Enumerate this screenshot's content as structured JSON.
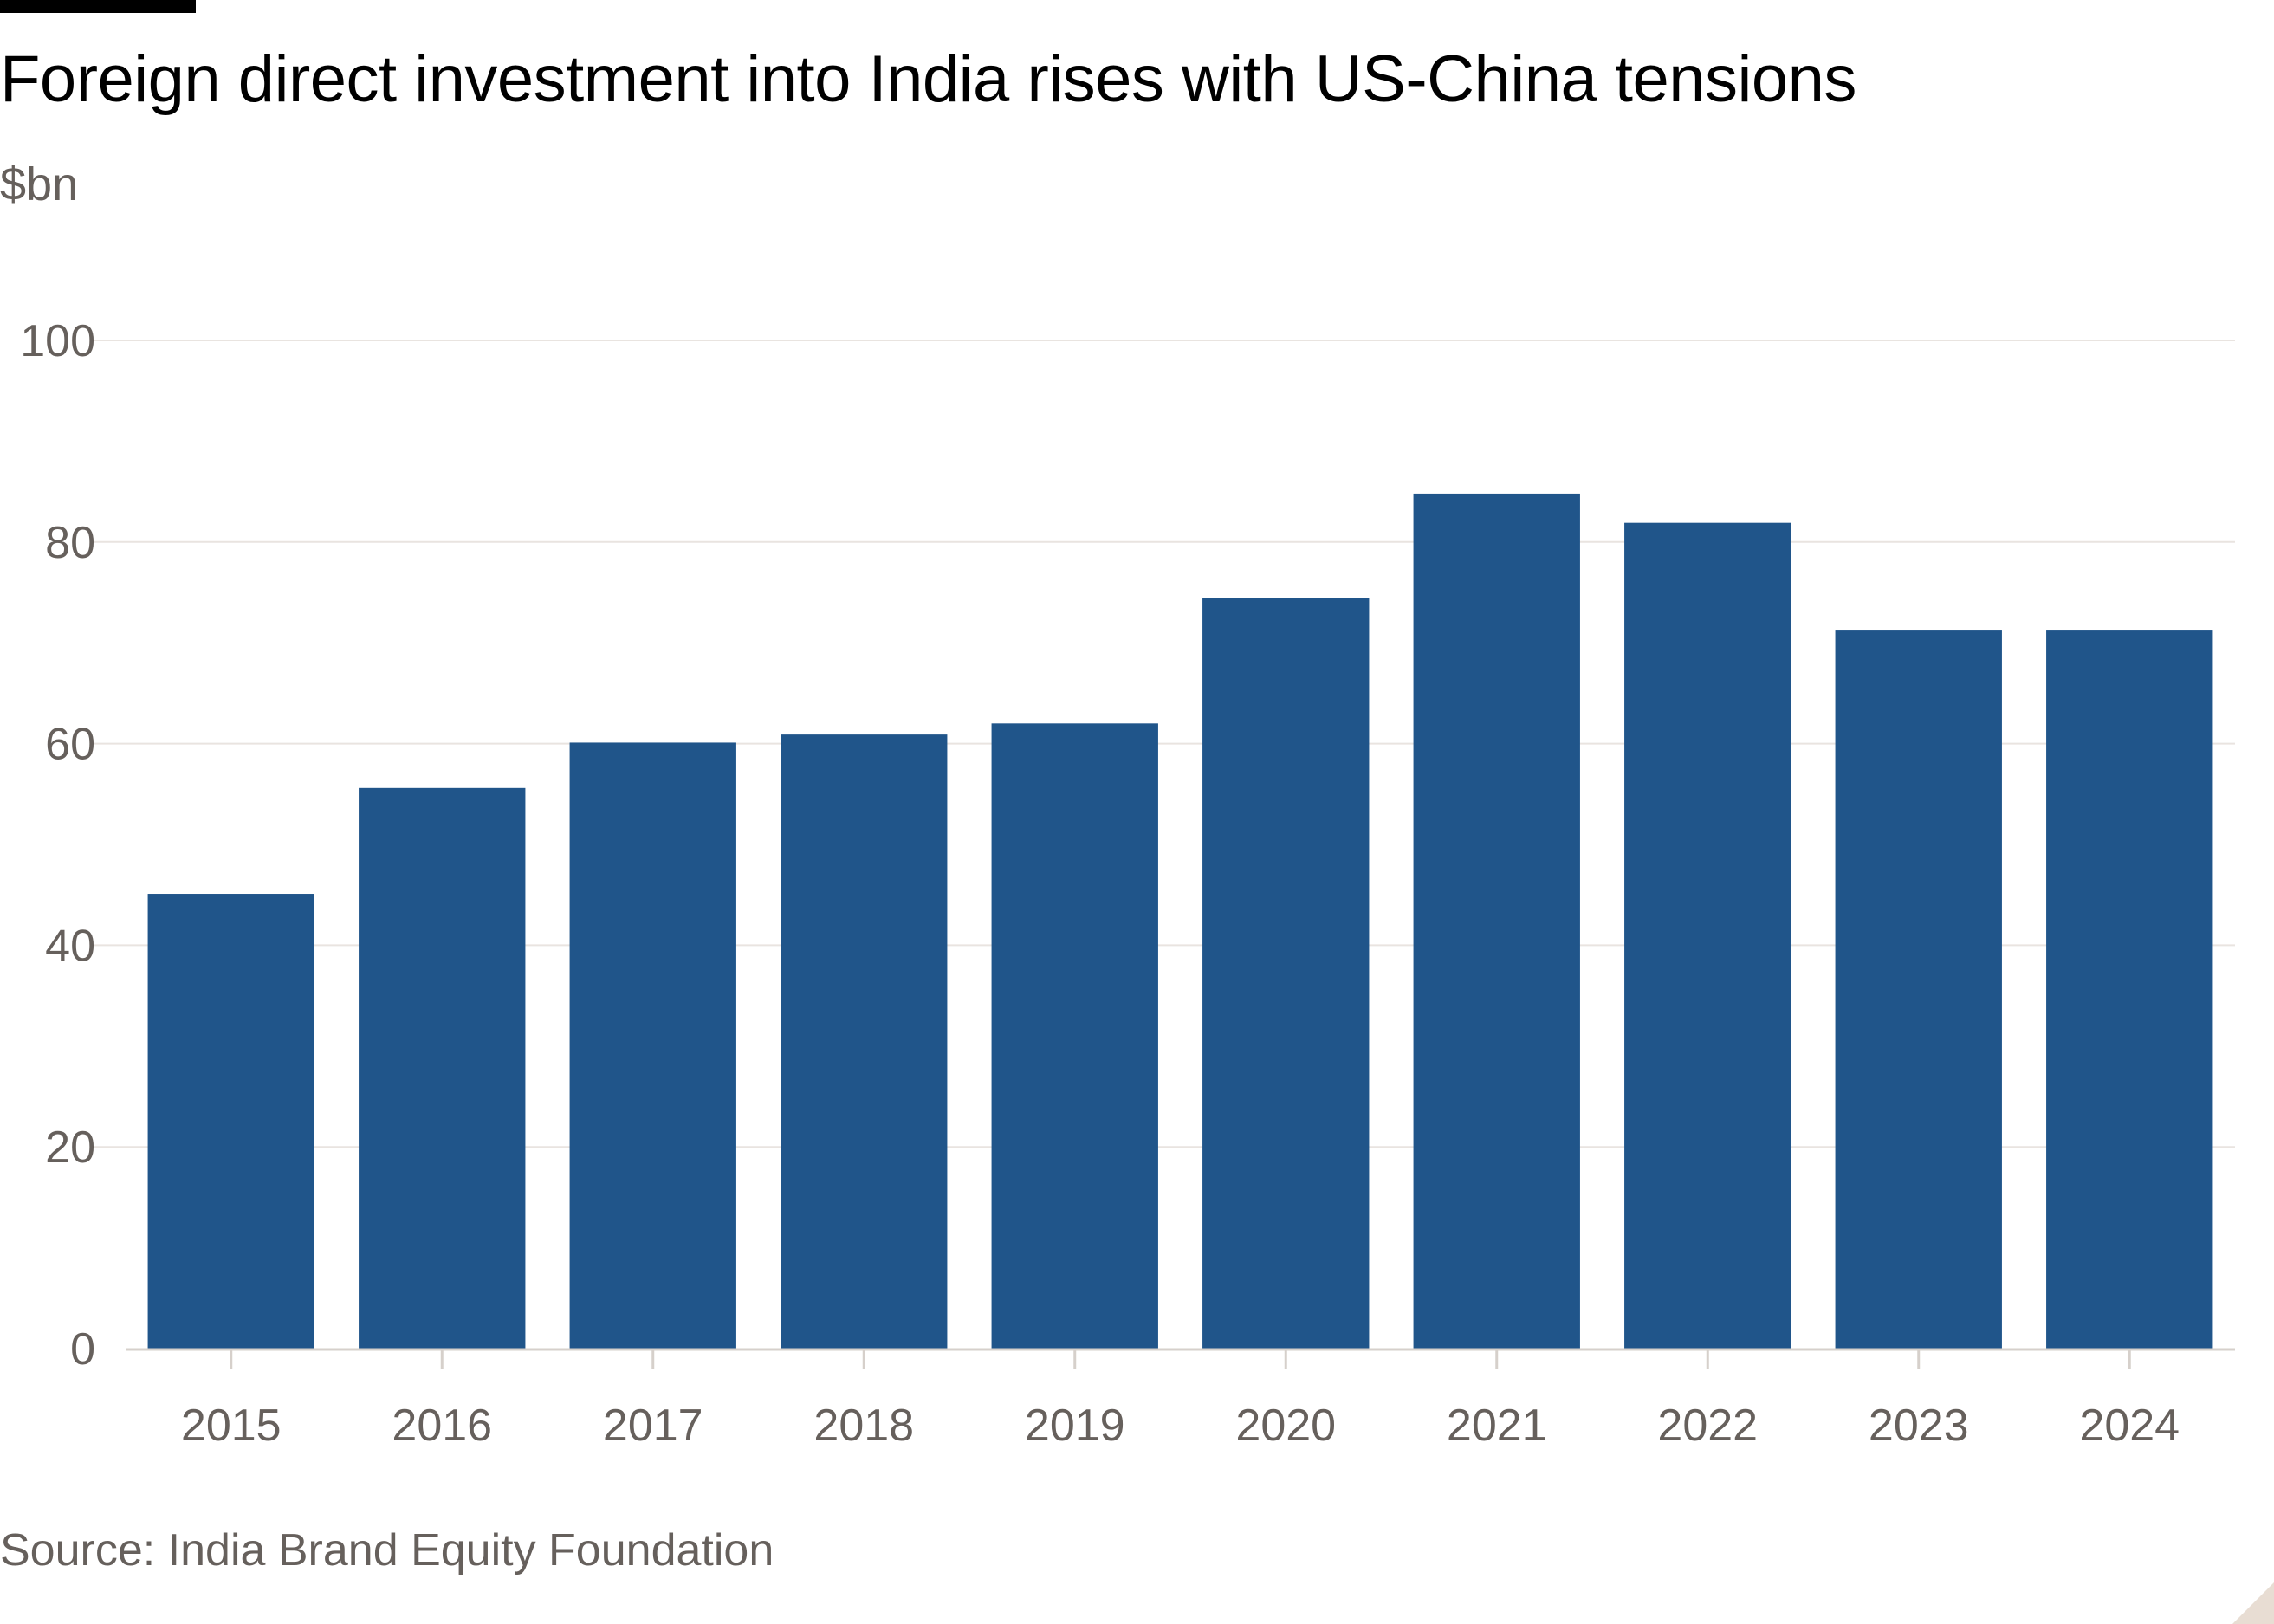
{
  "header": {
    "title": "Foreign direct investment into India rises with US-China tensions",
    "unit": "$bn"
  },
  "footer": {
    "source": "Source: India Brand Equity Foundation"
  },
  "colors": {
    "bar": "#20558a",
    "grid": "#e9e4e0",
    "axis": "#d6d0cb",
    "tick_text": "#66605c"
  },
  "chart_data": {
    "type": "bar",
    "title": "Foreign direct investment into India rises with US-China tensions",
    "ylabel": "$bn",
    "xlabel": "",
    "categories": [
      "2015",
      "2016",
      "2017",
      "2018",
      "2019",
      "2020",
      "2021",
      "2022",
      "2023",
      "2024"
    ],
    "values": [
      45.1,
      55.6,
      60.1,
      60.9,
      62.0,
      74.4,
      84.8,
      81.9,
      71.3,
      71.3
    ],
    "ylim": [
      0,
      100
    ],
    "yticks": [
      0,
      20,
      40,
      60,
      80,
      100
    ],
    "grid": true,
    "legend": "none"
  }
}
